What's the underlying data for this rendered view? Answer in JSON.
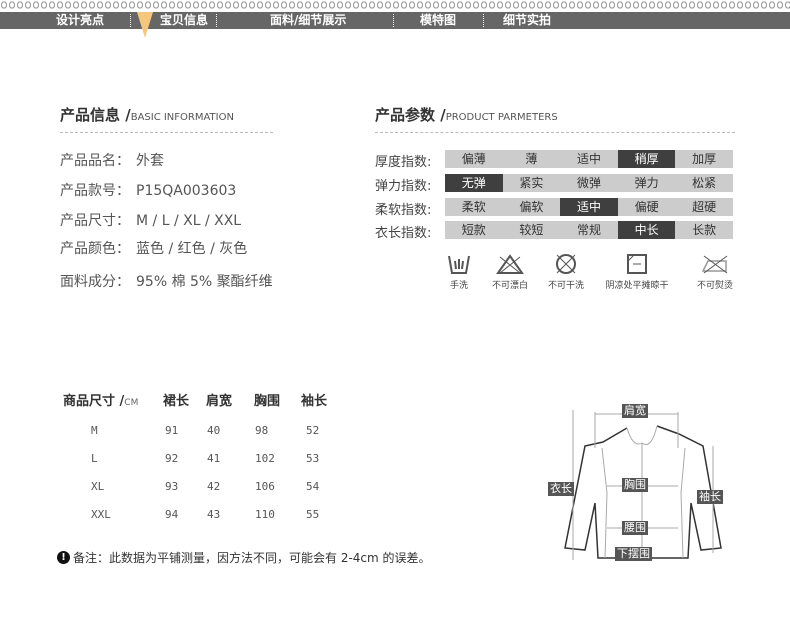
{
  "nav": {
    "items": [
      "设计亮点",
      "宝贝信息",
      "面料/细节展示",
      "模特图",
      "细节实拍"
    ],
    "active_color": "#f5c77e"
  },
  "info": {
    "title": "产品信息 /",
    "subtitle": "BASIC INFORMATION",
    "rows": [
      {
        "label": "产品品名：",
        "value": "外套"
      },
      {
        "label": "产品款号：",
        "value": "P15QA003603"
      },
      {
        "label": "产品尺寸：",
        "value": "M / L / XL / XXL"
      },
      {
        "label": "产品颜色：",
        "value": "蓝色 / 红色 / 灰色"
      },
      {
        "label": "面料成分：",
        "value": "95% 棉 5% 聚酯纤维"
      }
    ]
  },
  "params": {
    "title": "产品参数 /",
    "subtitle": "PRODUCT PARMETERS",
    "rows": [
      {
        "label": "厚度指数:",
        "options": [
          "偏薄",
          "薄",
          "适中",
          "稍厚",
          "加厚"
        ],
        "selected": "稍厚"
      },
      {
        "label": "弹力指数:",
        "options": [
          "无弹",
          "紧实",
          "微弹",
          "弹力",
          "松紧"
        ],
        "selected": "无弹"
      },
      {
        "label": "柔软指数:",
        "options": [
          "柔软",
          "偏软",
          "适中",
          "偏硬",
          "超硬"
        ],
        "selected": "适中"
      },
      {
        "label": "衣长指数:",
        "options": [
          "短款",
          "较短",
          "常规",
          "中长",
          "长款"
        ],
        "selected": "中长"
      }
    ],
    "care": [
      {
        "icon": "hand-wash-icon",
        "label": "手洗"
      },
      {
        "icon": "no-bleach-icon",
        "label": "不可漂白"
      },
      {
        "icon": "no-dry-clean-icon",
        "label": "不可干洗"
      },
      {
        "icon": "dry-flat-shade-icon",
        "label": "阴凉处平摊晾干"
      },
      {
        "icon": "no-iron-icon",
        "label": "不可熨烫"
      }
    ]
  },
  "size": {
    "title": "商品尺寸 /",
    "unit": "CM",
    "headers": [
      "裙长",
      "肩宽",
      "胸围",
      "袖长"
    ],
    "rows": [
      {
        "size": "M",
        "values": [
          "91",
          "40",
          "98",
          "52"
        ]
      },
      {
        "size": "L",
        "values": [
          "92",
          "41",
          "102",
          "53"
        ]
      },
      {
        "size": "XL",
        "values": [
          "93",
          "42",
          "106",
          "54"
        ]
      },
      {
        "size": "XXL",
        "values": [
          "94",
          "43",
          "110",
          "55"
        ]
      }
    ],
    "note": "备注：此数据为平铺测量，因方法不同，可能会有 2-4cm 的误差。"
  },
  "diagram": {
    "labels": {
      "shoulder": "肩宽",
      "length": "衣长",
      "chest": "胸围",
      "sleeve": "袖长",
      "waist": "腰围",
      "hem": "下摆围"
    }
  }
}
